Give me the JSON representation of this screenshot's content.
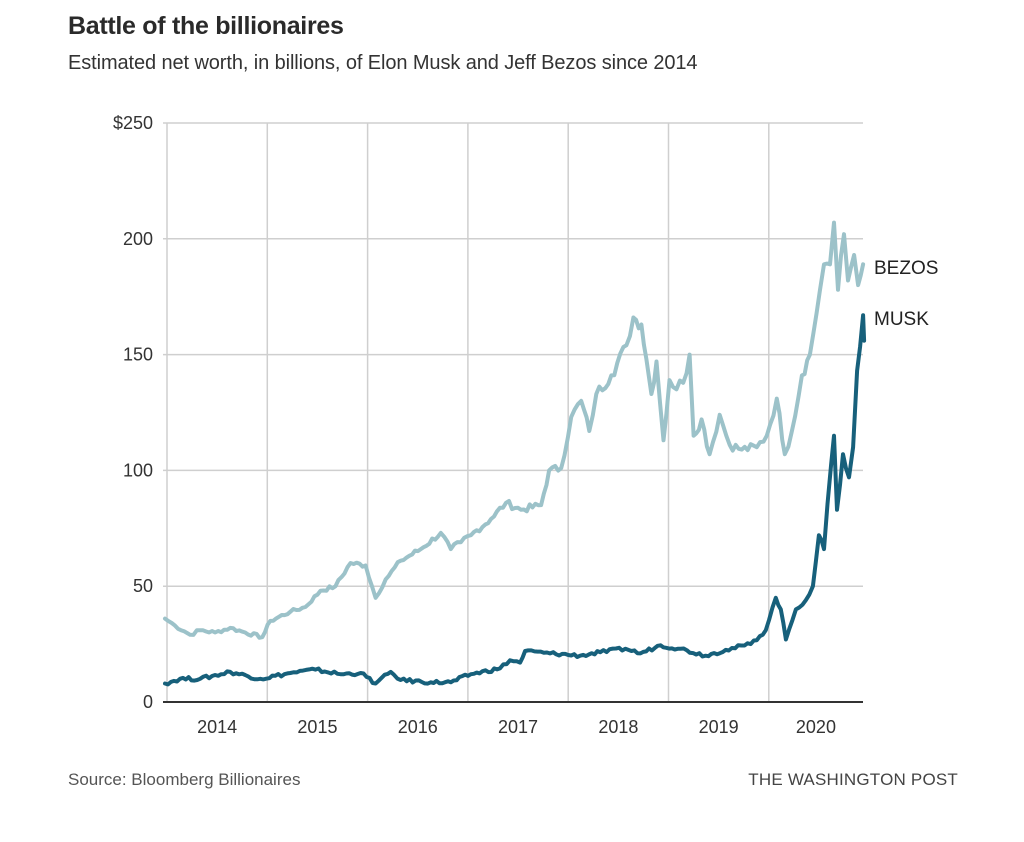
{
  "header": {
    "title": "Battle of the billionaires",
    "subtitle": "Estimated net worth, in billions, of Elon Musk and Jeff Bezos since 2014"
  },
  "footer": {
    "source": "Source: Bloomberg Billionaires",
    "brand": "THE WASHINGTON POST"
  },
  "chart_data": {
    "type": "line",
    "title": "Battle of the billionaires",
    "subtitle": "Estimated net worth, in billions, of Elon Musk and Jeff Bezos since 2014",
    "xlabel": "",
    "ylabel": "",
    "xlim": [
      2014.0,
      2020.93
    ],
    "ylim": [
      0,
      250
    ],
    "grid": true,
    "y_ticks": [
      {
        "value": 0,
        "label": "0"
      },
      {
        "value": 50,
        "label": "50"
      },
      {
        "value": 100,
        "label": "100"
      },
      {
        "value": 150,
        "label": "150"
      },
      {
        "value": 200,
        "label": "200"
      },
      {
        "value": 250,
        "label": "$250"
      }
    ],
    "x_gridlines": [
      2014,
      2015,
      2016,
      2017,
      2018,
      2019,
      2020
    ],
    "x_ticks": [
      {
        "value": 2014.5,
        "label": "2014"
      },
      {
        "value": 2015.5,
        "label": "2015"
      },
      {
        "value": 2016.5,
        "label": "2016"
      },
      {
        "value": 2017.5,
        "label": "2017"
      },
      {
        "value": 2018.5,
        "label": "2018"
      },
      {
        "value": 2019.5,
        "label": "2019"
      },
      {
        "value": 2020.47,
        "label": "2020"
      }
    ],
    "legend": "direct labels at right end of lines",
    "series": [
      {
        "name": "BEZOS",
        "color": "#9cc2c9",
        "x": [
          2013.98,
          2014.08,
          2014.23,
          2014.33,
          2014.48,
          2014.63,
          2014.78,
          2014.95,
          2015.03,
          2015.23,
          2015.38,
          2015.53,
          2015.68,
          2015.83,
          2015.98,
          2016.08,
          2016.18,
          2016.33,
          2016.53,
          2016.73,
          2016.83,
          2016.93,
          2017.03,
          2017.23,
          2017.38,
          2017.53,
          2017.73,
          2017.81,
          2017.93,
          2018.03,
          2018.13,
          2018.21,
          2018.28,
          2018.43,
          2018.58,
          2018.65,
          2018.73,
          2018.78,
          2018.83,
          2018.88,
          2018.95,
          2019.01,
          2019.08,
          2019.18,
          2019.21,
          2019.25,
          2019.33,
          2019.41,
          2019.51,
          2019.61,
          2019.73,
          2019.88,
          2019.98,
          2020.08,
          2020.16,
          2020.23,
          2020.33,
          2020.41,
          2020.51,
          2020.55,
          2020.61,
          2020.65,
          2020.69,
          2020.75,
          2020.79,
          2020.85,
          2020.89,
          2020.94
        ],
        "values": [
          36,
          33,
          29,
          31,
          30,
          32,
          30,
          28,
          35,
          39,
          41,
          48,
          50,
          60,
          59,
          45,
          53,
          61,
          66,
          73,
          66,
          69,
          72,
          79,
          86,
          83,
          85,
          100,
          101,
          123,
          130,
          117,
          133,
          141,
          154,
          166,
          163,
          148,
          133,
          147,
          113,
          139,
          135,
          142,
          150,
          115,
          122,
          107,
          124,
          111,
          109,
          110,
          115,
          131,
          107,
          117,
          141,
          150,
          178,
          189,
          189,
          207,
          178,
          202,
          182,
          193,
          180,
          189
        ]
      },
      {
        "name": "MUSK",
        "color": "#17607b",
        "x": [
          2013.98,
          2014.13,
          2014.33,
          2014.63,
          2014.93,
          2015.23,
          2015.48,
          2015.73,
          2015.93,
          2016.08,
          2016.23,
          2016.33,
          2016.63,
          2016.83,
          2017.03,
          2017.32,
          2017.42,
          2017.52,
          2017.57,
          2017.82,
          2018.12,
          2018.32,
          2018.57,
          2018.72,
          2018.92,
          2019.12,
          2019.37,
          2019.57,
          2019.82,
          2019.97,
          2020.07,
          2020.12,
          2020.17,
          2020.27,
          2020.37,
          2020.44,
          2020.5,
          2020.55,
          2020.62,
          2020.65,
          2020.68,
          2020.74,
          2020.8,
          2020.84,
          2020.88,
          2020.94,
          2020.95
        ],
        "values": [
          8,
          10,
          10,
          13,
          10,
          12.5,
          14,
          12,
          12.5,
          8,
          13,
          9.5,
          8.5,
          8.5,
          12,
          14.5,
          18,
          17,
          22,
          21,
          20,
          21.5,
          23,
          21,
          24.5,
          23,
          20,
          22.5,
          25,
          31,
          45,
          40,
          27,
          40,
          44,
          50,
          72,
          66,
          102,
          115,
          83,
          107,
          97,
          110,
          143,
          167,
          156
        ]
      }
    ]
  }
}
